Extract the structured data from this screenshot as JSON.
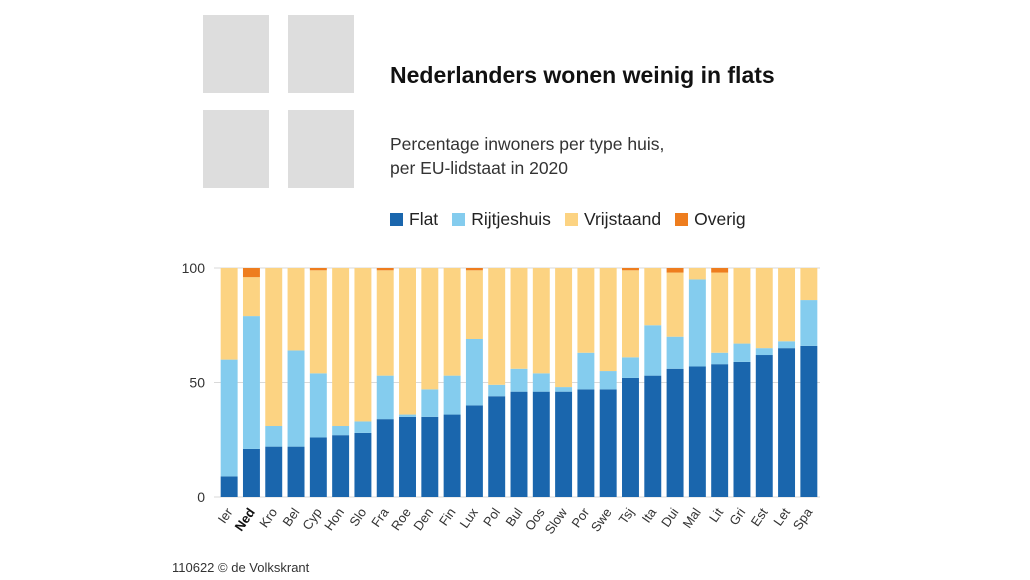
{
  "title": "Nederlanders wonen weinig in flats",
  "subtitle_line1": "Percentage inwoners per type huis,",
  "subtitle_line2": "per EU-lidstaat in 2020",
  "source": "110622 © de Volkskrant",
  "colors": {
    "flat": "#1a66ad",
    "rijtjeshuis": "#84ccee",
    "vrijstaand": "#fcd382",
    "overig": "#ee7d1e",
    "grid": "#d9d9d9",
    "logo": "#dddddd"
  },
  "chart_data": {
    "type": "bar",
    "stacked": true,
    "title": "Nederlanders wonen weinig in flats",
    "subtitle": "Percentage inwoners per type huis, per EU-lidstaat in 2020",
    "ylim": [
      0,
      100
    ],
    "yticks": [
      "0",
      "50",
      "100"
    ],
    "highlight_category": "Ned",
    "legend_position": "top",
    "categories": [
      "Ier",
      "Ned",
      "Kro",
      "Bel",
      "Cyp",
      "Hon",
      "Slo",
      "Fra",
      "Roe",
      "Den",
      "Fin",
      "Lux",
      "Pol",
      "Bul",
      "Oos",
      "Slow",
      "Por",
      "Swe",
      "Tsj",
      "Ita",
      "Dui",
      "Mal",
      "Lit",
      "Gri",
      "Est",
      "Let",
      "Spa"
    ],
    "series": [
      {
        "name": "Flat",
        "color": "#1a66ad",
        "values": [
          9,
          21,
          22,
          22,
          26,
          27,
          28,
          34,
          35,
          35,
          36,
          40,
          44,
          46,
          46,
          46,
          47,
          47,
          52,
          53,
          56,
          57,
          58,
          59,
          62,
          65,
          66
        ]
      },
      {
        "name": "Rijtjeshuis",
        "color": "#84ccee",
        "values": [
          51,
          58,
          9,
          42,
          28,
          4,
          5,
          19,
          1,
          12,
          17,
          29,
          5,
          10,
          8,
          2,
          16,
          8,
          9,
          22,
          14,
          38,
          5,
          8,
          3,
          3,
          20
        ]
      },
      {
        "name": "Vrijstaand",
        "color": "#fcd382",
        "values": [
          40,
          17,
          69,
          36,
          45,
          69,
          67,
          46,
          64,
          53,
          47,
          30,
          51,
          44,
          46,
          52,
          37,
          45,
          38,
          25,
          28,
          5,
          35,
          33,
          35,
          32,
          14
        ]
      },
      {
        "name": "Overig",
        "color": "#ee7d1e",
        "values": [
          0,
          4,
          0,
          0,
          1,
          0,
          0,
          1,
          0,
          0,
          0,
          1,
          0,
          0,
          0,
          0,
          0,
          0,
          1,
          0,
          2,
          0,
          2,
          0,
          0,
          0,
          0
        ]
      }
    ]
  }
}
